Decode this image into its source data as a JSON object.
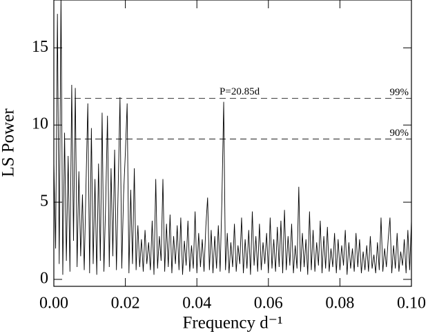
{
  "chart_data": {
    "type": "line",
    "xlabel": "Frequency d⁻¹",
    "ylabel": "LS Power",
    "xlim": [
      0,
      0.1
    ],
    "ylim": [
      -0.45,
      18.1
    ],
    "xticks": [
      {
        "value": 0,
        "label": "0.00"
      },
      {
        "value": 0.02,
        "label": "0.02"
      },
      {
        "value": 0.04,
        "label": "0.04"
      },
      {
        "value": 0.06,
        "label": "0.06"
      },
      {
        "value": 0.08,
        "label": "0.08"
      },
      {
        "value": 0.1,
        "label": "0.10"
      }
    ],
    "yticks": [
      0,
      5,
      10,
      15
    ],
    "color": "#000000",
    "thresholds": [
      {
        "value": 11.73,
        "label": "99%"
      },
      {
        "value": 9.09,
        "label": "90%"
      }
    ],
    "annotation": {
      "text": "P=20.85d",
      "x": 0.0477,
      "y": 11.5
    },
    "x": [
      0,
      0.0005,
      0.001,
      0.0015,
      0.002,
      0.0025,
      0.003,
      0.0035,
      0.004,
      0.0045,
      0.005,
      0.0055,
      0.006,
      0.0065,
      0.007,
      0.0075,
      0.008,
      0.0085,
      0.009,
      0.0095,
      0.01,
      0.0105,
      0.011,
      0.0115,
      0.012,
      0.0125,
      0.013,
      0.0135,
      0.014,
      0.0145,
      0.015,
      0.0155,
      0.016,
      0.0165,
      0.017,
      0.0175,
      0.018,
      0.0185,
      0.019,
      0.0195,
      0.02,
      0.0205,
      0.021,
      0.0215,
      0.022,
      0.0225,
      0.023,
      0.0235,
      0.024,
      0.0245,
      0.025,
      0.0255,
      0.026,
      0.0265,
      0.027,
      0.0275,
      0.028,
      0.0285,
      0.029,
      0.0295,
      0.03,
      0.0305,
      0.031,
      0.0315,
      0.032,
      0.0325,
      0.033,
      0.0335,
      0.034,
      0.0345,
      0.035,
      0.0355,
      0.036,
      0.0365,
      0.037,
      0.0375,
      0.038,
      0.0385,
      0.039,
      0.0395,
      0.04,
      0.0405,
      0.041,
      0.0415,
      0.042,
      0.0425,
      0.043,
      0.0435,
      0.044,
      0.0445,
      0.045,
      0.0455,
      0.046,
      0.0465,
      0.047,
      0.0475,
      0.048,
      0.0485,
      0.049,
      0.0495,
      0.05,
      0.0505,
      0.051,
      0.0515,
      0.052,
      0.0525,
      0.053,
      0.0535,
      0.054,
      0.0545,
      0.055,
      0.0555,
      0.056,
      0.0565,
      0.057,
      0.0575,
      0.058,
      0.0585,
      0.059,
      0.0595,
      0.06,
      0.0605,
      0.061,
      0.0615,
      0.062,
      0.0625,
      0.063,
      0.0635,
      0.064,
      0.0645,
      0.065,
      0.0655,
      0.066,
      0.0665,
      0.067,
      0.0675,
      0.068,
      0.0685,
      0.069,
      0.0695,
      0.07,
      0.0705,
      0.071,
      0.0715,
      0.072,
      0.0725,
      0.073,
      0.0735,
      0.074,
      0.0745,
      0.075,
      0.0755,
      0.076,
      0.0765,
      0.077,
      0.0775,
      0.078,
      0.0785,
      0.079,
      0.0795,
      0.08,
      0.0805,
      0.081,
      0.0815,
      0.082,
      0.0825,
      0.083,
      0.0835,
      0.084,
      0.0845,
      0.085,
      0.0855,
      0.086,
      0.0865,
      0.087,
      0.0875,
      0.088,
      0.0885,
      0.089,
      0.0895,
      0.09,
      0.0905,
      0.091,
      0.0915,
      0.092,
      0.0925,
      0.093,
      0.0935,
      0.094,
      0.0945,
      0.095,
      0.0955,
      0.096,
      0.0965,
      0.097,
      0.0975,
      0.098,
      0.0985,
      0.099,
      0.0995,
      0.1
    ],
    "values": [
      7.6,
      2.0,
      17.2,
      1.0,
      18.5,
      0.3,
      9.5,
      1.2,
      8.0,
      0.5,
      12.6,
      2.5,
      12.4,
      0.8,
      7.0,
      1.5,
      5.5,
      0.6,
      6.2,
      11.4,
      0.4,
      9.8,
      1.0,
      6.5,
      0.3,
      7.5,
      1.2,
      10.8,
      0.5,
      5.0,
      10.6,
      0.8,
      7.2,
      1.5,
      8.4,
      0.6,
      6.0,
      11.8,
      0.7,
      5.5,
      8.2,
      11.4,
      0.4,
      5.8,
      1.0,
      7.2,
      0.6,
      3.5,
      0.8,
      2.6,
      0.5,
      3.2,
      1.0,
      2.4,
      0.6,
      3.8,
      0.3,
      6.5,
      0.7,
      2.8,
      1.2,
      6.5,
      0.5,
      3.6,
      0.8,
      4.2,
      0.4,
      2.8,
      1.0,
      3.5,
      0.6,
      4.0,
      0.3,
      2.5,
      0.9,
      3.8,
      0.5,
      2.2,
      0.7,
      4.4,
      0.4,
      3.0,
      0.8,
      2.6,
      0.5,
      3.4,
      5.3,
      0.6,
      3.2,
      0.4,
      2.8,
      0.7,
      3.5,
      0.5,
      5.2,
      11.5,
      0.6,
      3.0,
      0.4,
      2.4,
      0.8,
      3.6,
      0.5,
      2.2,
      1.0,
      4.0,
      0.4,
      2.6,
      0.7,
      3.2,
      0.3,
      4.4,
      0.9,
      2.8,
      0.5,
      3.6,
      0.6,
      2.4,
      1.0,
      3.0,
      0.4,
      4.0,
      0.7,
      2.6,
      0.5,
      3.4,
      0.8,
      3.8,
      0.4,
      4.5,
      0.6,
      2.8,
      0.9,
      3.6,
      0.4,
      2.2,
      0.7,
      6.0,
      0.5,
      3.0,
      0.8,
      2.6,
      0.3,
      4.4,
      0.6,
      3.2,
      0.5,
      2.4,
      0.9,
      3.8,
      0.4,
      2.8,
      0.7,
      3.4,
      0.5,
      2.0,
      0.8,
      3.0,
      0.4,
      2.6,
      0.6,
      2.2,
      0.9,
      3.2,
      0.3,
      2.4,
      0.7,
      2.0,
      0.5,
      3.0,
      0.8,
      2.6,
      0.4,
      1.8,
      0.6,
      2.2,
      0.5,
      2.8,
      0.7,
      1.6,
      0.4,
      2.4,
      0.6,
      4.0,
      0.5,
      2.0,
      0.8,
      2.6,
      4.0,
      0.4,
      2.2,
      0.7,
      3.0,
      0.5,
      1.8,
      0.9,
      2.6,
      0.4,
      3.2,
      0.6,
      3.8
    ]
  }
}
